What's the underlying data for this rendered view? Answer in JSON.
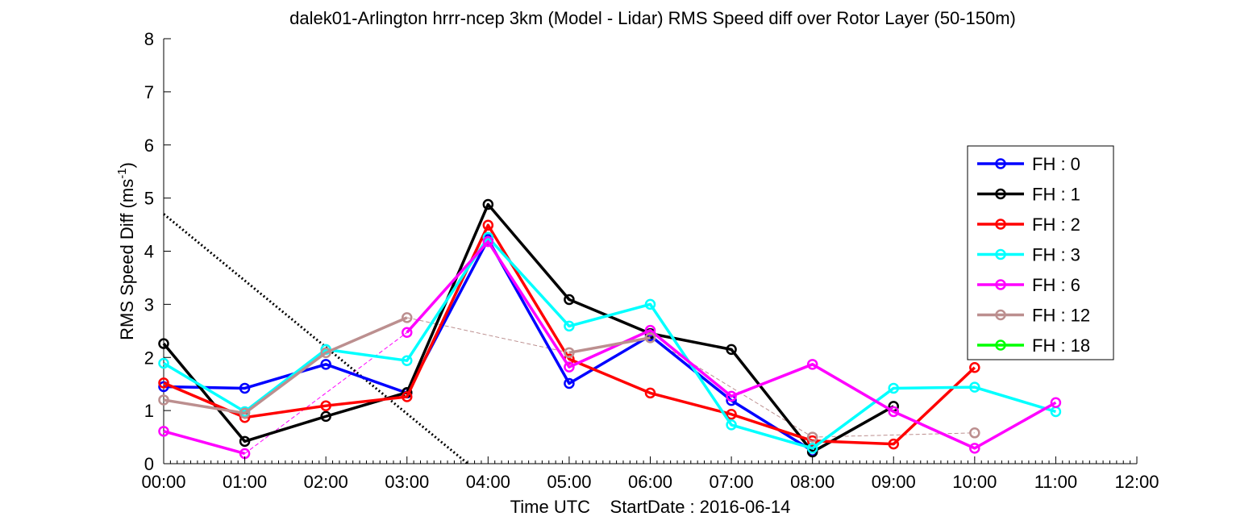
{
  "chart_data": {
    "type": "line",
    "title": "dalek01-Arlington hrrr-ncep 3km (Model - Lidar) RMS Speed diff over Rotor Layer (50-150m)",
    "xlabel": "Time UTC    StartDate : 2016-06-14",
    "ylabel": "RMS Speed Diff (ms",
    "ylabel_sup": "-1",
    "ylabel_end": ")",
    "xlim": [
      0,
      12
    ],
    "ylim": [
      0,
      8
    ],
    "x_ticks": [
      0,
      1,
      2,
      3,
      4,
      5,
      6,
      7,
      8,
      9,
      10,
      11,
      12
    ],
    "x_tick_labels": [
      "00:00",
      "01:00",
      "02:00",
      "03:00",
      "04:00",
      "05:00",
      "06:00",
      "07:00",
      "08:00",
      "09:00",
      "10:00",
      "11:00",
      "12:00"
    ],
    "y_ticks": [
      0,
      1,
      2,
      3,
      4,
      5,
      6,
      7,
      8
    ],
    "y_tick_labels": [
      "0",
      "1",
      "2",
      "3",
      "4",
      "5",
      "6",
      "7",
      "8"
    ],
    "grid": false,
    "legend_position": "right",
    "series": [
      {
        "name": "FH : 0",
        "color": "#0000ff",
        "x": [
          0,
          1,
          2,
          3,
          4,
          5,
          6,
          7,
          8
        ],
        "y": [
          1.45,
          1.42,
          1.87,
          1.33,
          4.22,
          1.51,
          2.41,
          1.19,
          0.24
        ]
      },
      {
        "name": "FH : 1",
        "color": "#000000",
        "x": [
          0,
          1,
          2,
          3,
          4,
          5,
          6,
          7,
          8,
          9
        ],
        "y": [
          2.26,
          0.42,
          0.89,
          1.34,
          4.88,
          3.09,
          2.45,
          2.15,
          0.22,
          1.08
        ]
      },
      {
        "name": "FH : 2",
        "color": "#ff0000",
        "x": [
          0,
          1,
          2,
          3,
          4,
          5,
          6,
          7,
          8,
          9,
          10
        ],
        "y": [
          1.52,
          0.87,
          1.09,
          1.26,
          4.49,
          1.97,
          1.33,
          0.93,
          0.43,
          0.37,
          1.81
        ]
      },
      {
        "name": "FH : 3",
        "color": "#00ffff",
        "x": [
          0,
          1,
          2,
          3,
          4,
          5,
          6,
          7,
          8,
          9,
          10,
          11
        ],
        "y": [
          1.89,
          0.98,
          2.15,
          1.94,
          4.26,
          2.59,
          3.0,
          0.73,
          0.29,
          1.42,
          1.44,
          0.98
        ]
      },
      {
        "name": "FH : 6",
        "color": "#ff00ff",
        "x": [
          0,
          1,
          3,
          4,
          5,
          6,
          7,
          8,
          9,
          10,
          11
        ],
        "y": [
          0.61,
          0.19,
          2.47,
          4.18,
          1.82,
          2.51,
          1.27,
          1.87,
          0.98,
          0.29,
          1.15
        ]
      },
      {
        "name": "FH : 12",
        "color": "#bc8f8f",
        "x": [
          0,
          1,
          2,
          3,
          5,
          6,
          8,
          10
        ],
        "y": [
          1.2,
          0.95,
          2.09,
          2.75,
          2.09,
          2.37,
          0.5,
          0.58
        ]
      },
      {
        "name": "FH : 18",
        "color": "#00ff00",
        "x": [],
        "y": []
      }
    ],
    "annotations": [
      {
        "kind": "dotted-line",
        "color": "#000000",
        "x": [
          0,
          3.75
        ],
        "y": [
          4.7,
          0
        ]
      }
    ]
  }
}
